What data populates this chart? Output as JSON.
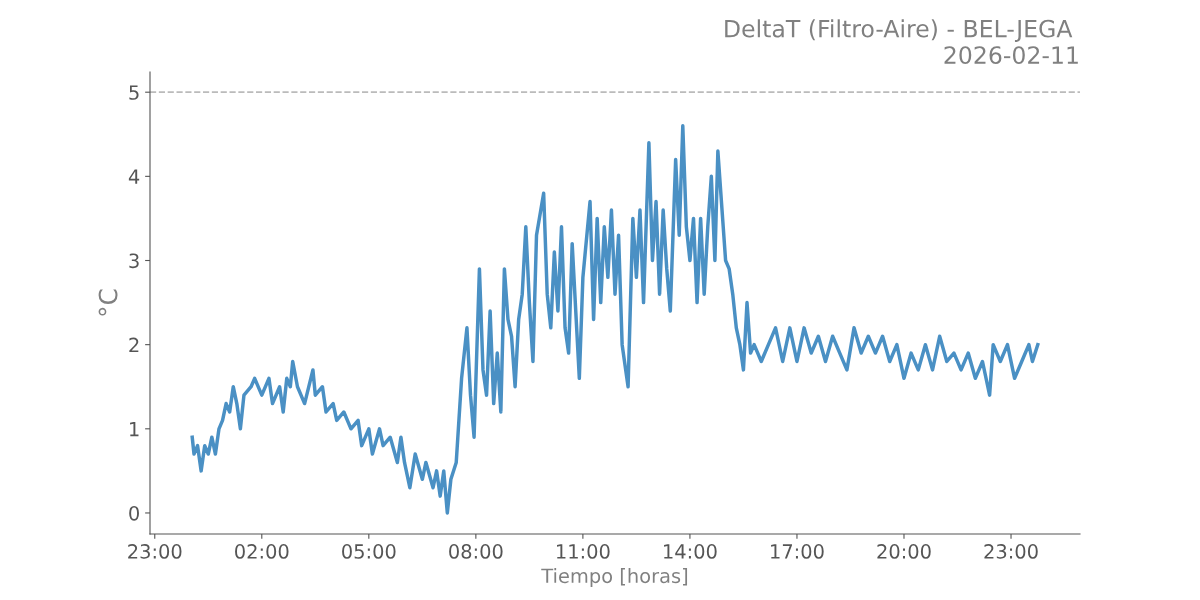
{
  "chart_data": {
    "type": "line",
    "title": "DeltaT (Filtro-Aire) - BEL-JEGA \n2026-02-11",
    "xlabel": "Tiempo [horas]",
    "ylabel": "°C",
    "xlim": [
      "2026-02-10T22:52",
      "2026-02-12T00:56"
    ],
    "ylim": [
      -0.25,
      5.24
    ],
    "xticks": [
      {
        "value": "2026-02-10T23:00",
        "label": "23:00"
      },
      {
        "value": "2026-02-11T02:00",
        "label": "02:00"
      },
      {
        "value": "2026-02-11T05:00",
        "label": "05:00"
      },
      {
        "value": "2026-02-11T08:00",
        "label": "08:00"
      },
      {
        "value": "2026-02-11T11:00",
        "label": "11:00"
      },
      {
        "value": "2026-02-11T14:00",
        "label": "14:00"
      },
      {
        "value": "2026-02-11T17:00",
        "label": "17:00"
      },
      {
        "value": "2026-02-11T20:00",
        "label": "20:00"
      },
      {
        "value": "2026-02-11T23:00",
        "label": "23:00"
      }
    ],
    "yticks": [
      0,
      1,
      2,
      3,
      4,
      5
    ],
    "grid": false,
    "legend": false,
    "marker": "none",
    "line_style": "solid",
    "ref_lines": [
      {
        "axis": "y",
        "value": 5,
        "label": null,
        "color": "#bbbbbb",
        "line_style": "dashed"
      }
    ],
    "series": [
      {
        "color": "#4a90c4",
        "x": [
          "2026-02-11T00:03",
          "2026-02-11T00:06",
          "2026-02-11T00:12",
          "2026-02-11T00:18",
          "2026-02-11T00:24",
          "2026-02-11T00:30",
          "2026-02-11T00:36",
          "2026-02-11T00:42",
          "2026-02-11T00:48",
          "2026-02-11T00:54",
          "2026-02-11T01:00",
          "2026-02-11T01:06",
          "2026-02-11T01:12",
          "2026-02-11T01:18",
          "2026-02-11T01:24",
          "2026-02-11T01:30",
          "2026-02-11T01:42",
          "2026-02-11T01:48",
          "2026-02-11T02:00",
          "2026-02-11T02:12",
          "2026-02-11T02:18",
          "2026-02-11T02:30",
          "2026-02-11T02:36",
          "2026-02-11T02:42",
          "2026-02-11T02:48",
          "2026-02-11T02:52",
          "2026-02-11T03:00",
          "2026-02-11T03:12",
          "2026-02-11T03:26",
          "2026-02-11T03:30",
          "2026-02-11T03:42",
          "2026-02-11T03:48",
          "2026-02-11T04:00",
          "2026-02-11T04:06",
          "2026-02-11T04:18",
          "2026-02-11T04:30",
          "2026-02-11T04:42",
          "2026-02-11T04:48",
          "2026-02-11T05:00",
          "2026-02-11T05:06",
          "2026-02-11T05:18",
          "2026-02-11T05:24",
          "2026-02-11T05:36",
          "2026-02-11T05:48",
          "2026-02-11T05:54",
          "2026-02-11T06:00",
          "2026-02-11T06:09",
          "2026-02-11T06:18",
          "2026-02-11T06:30",
          "2026-02-11T06:36",
          "2026-02-11T06:48",
          "2026-02-11T06:54",
          "2026-02-11T07:00",
          "2026-02-11T07:06",
          "2026-02-11T07:12",
          "2026-02-11T07:18",
          "2026-02-11T07:27",
          "2026-02-11T07:36",
          "2026-02-11T07:45",
          "2026-02-11T07:51",
          "2026-02-11T07:57",
          "2026-02-11T08:06",
          "2026-02-11T08:12",
          "2026-02-11T08:18",
          "2026-02-11T08:24",
          "2026-02-11T08:30",
          "2026-02-11T08:36",
          "2026-02-11T08:42",
          "2026-02-11T08:48",
          "2026-02-11T08:54",
          "2026-02-11T09:00",
          "2026-02-11T09:06",
          "2026-02-11T09:12",
          "2026-02-11T09:18",
          "2026-02-11T09:24",
          "2026-02-11T09:30",
          "2026-02-11T09:36",
          "2026-02-11T09:42",
          "2026-02-11T09:54",
          "2026-02-11T10:00",
          "2026-02-11T10:06",
          "2026-02-11T10:12",
          "2026-02-11T10:18",
          "2026-02-11T10:24",
          "2026-02-11T10:30",
          "2026-02-11T10:36",
          "2026-02-11T10:42",
          "2026-02-11T10:54",
          "2026-02-11T11:00",
          "2026-02-11T11:12",
          "2026-02-11T11:18",
          "2026-02-11T11:24",
          "2026-02-11T11:30",
          "2026-02-11T11:36",
          "2026-02-11T11:42",
          "2026-02-11T11:48",
          "2026-02-11T11:54",
          "2026-02-11T12:00",
          "2026-02-11T12:06",
          "2026-02-11T12:16",
          "2026-02-11T12:24",
          "2026-02-11T12:30",
          "2026-02-11T12:36",
          "2026-02-11T12:42",
          "2026-02-11T12:51",
          "2026-02-11T12:57",
          "2026-02-11T13:03",
          "2026-02-11T13:09",
          "2026-02-11T13:15",
          "2026-02-11T13:21",
          "2026-02-11T13:27",
          "2026-02-11T13:36",
          "2026-02-11T13:42",
          "2026-02-11T13:48",
          "2026-02-11T13:54",
          "2026-02-11T14:00",
          "2026-02-11T14:06",
          "2026-02-11T14:12",
          "2026-02-11T14:18",
          "2026-02-11T14:24",
          "2026-02-11T14:30",
          "2026-02-11T14:36",
          "2026-02-11T14:42",
          "2026-02-11T14:47",
          "2026-02-11T14:54",
          "2026-02-11T15:00",
          "2026-02-11T15:06",
          "2026-02-11T15:12",
          "2026-02-11T15:18",
          "2026-02-11T15:24",
          "2026-02-11T15:30",
          "2026-02-11T15:36",
          "2026-02-11T15:42",
          "2026-02-11T15:48",
          "2026-02-11T16:00",
          "2026-02-11T16:12",
          "2026-02-11T16:24",
          "2026-02-11T16:36",
          "2026-02-11T16:48",
          "2026-02-11T17:00",
          "2026-02-11T17:12",
          "2026-02-11T17:24",
          "2026-02-11T17:36",
          "2026-02-11T17:48",
          "2026-02-11T18:00",
          "2026-02-11T18:12",
          "2026-02-11T18:24",
          "2026-02-11T18:36",
          "2026-02-11T18:48",
          "2026-02-11T19:00",
          "2026-02-11T19:12",
          "2026-02-11T19:24",
          "2026-02-11T19:36",
          "2026-02-11T19:48",
          "2026-02-11T20:00",
          "2026-02-11T20:12",
          "2026-02-11T20:24",
          "2026-02-11T20:36",
          "2026-02-11T20:48",
          "2026-02-11T21:00",
          "2026-02-11T21:12",
          "2026-02-11T21:24",
          "2026-02-11T21:36",
          "2026-02-11T21:48",
          "2026-02-11T22:00",
          "2026-02-11T22:12",
          "2026-02-11T22:24",
          "2026-02-11T22:30",
          "2026-02-11T22:42",
          "2026-02-11T22:54",
          "2026-02-11T23:06",
          "2026-02-11T23:18",
          "2026-02-11T23:30",
          "2026-02-11T23:36",
          "2026-02-11T23:45"
        ],
        "values": [
          0.9,
          0.7,
          0.8,
          0.5,
          0.8,
          0.7,
          0.9,
          0.7,
          1.0,
          1.1,
          1.3,
          1.2,
          1.5,
          1.3,
          1.0,
          1.4,
          1.5,
          1.6,
          1.4,
          1.6,
          1.3,
          1.5,
          1.2,
          1.6,
          1.5,
          1.8,
          1.5,
          1.3,
          1.7,
          1.4,
          1.5,
          1.2,
          1.3,
          1.1,
          1.2,
          1.0,
          1.1,
          0.8,
          1.0,
          0.7,
          1.0,
          0.8,
          0.9,
          0.6,
          0.9,
          0.6,
          0.3,
          0.7,
          0.4,
          0.6,
          0.3,
          0.5,
          0.2,
          0.5,
          0.0,
          0.4,
          0.6,
          1.6,
          2.2,
          1.4,
          0.9,
          2.9,
          1.7,
          1.4,
          2.4,
          1.3,
          1.9,
          1.2,
          2.9,
          2.3,
          2.1,
          1.5,
          2.3,
          2.6,
          3.4,
          2.5,
          1.8,
          3.3,
          3.8,
          2.6,
          2.2,
          3.1,
          2.4,
          3.4,
          2.2,
          1.9,
          3.2,
          1.6,
          2.8,
          3.7,
          2.3,
          3.5,
          2.5,
          3.4,
          2.8,
          3.6,
          2.6,
          3.3,
          2.0,
          1.5,
          3.5,
          2.8,
          3.6,
          2.5,
          4.4,
          3.0,
          3.7,
          2.6,
          3.6,
          2.9,
          2.4,
          4.2,
          3.3,
          4.6,
          3.4,
          3.0,
          3.5,
          2.5,
          3.5,
          2.6,
          3.4,
          4.0,
          3.0,
          4.3,
          3.6,
          3.0,
          2.9,
          2.6,
          2.2,
          2.0,
          1.7,
          2.5,
          1.9,
          2.0,
          1.8,
          2.0,
          2.2,
          1.8,
          2.2,
          1.8,
          2.2,
          1.9,
          2.1,
          1.8,
          2.1,
          1.9,
          1.7,
          2.2,
          1.9,
          2.1,
          1.9,
          2.1,
          1.8,
          2.0,
          1.6,
          1.9,
          1.7,
          2.0,
          1.7,
          2.1,
          1.8,
          1.9,
          1.7,
          1.9,
          1.6,
          1.8,
          1.4,
          2.0,
          1.8,
          2.0,
          1.6,
          1.8,
          2.0,
          1.8,
          2.0
        ]
      }
    ]
  }
}
